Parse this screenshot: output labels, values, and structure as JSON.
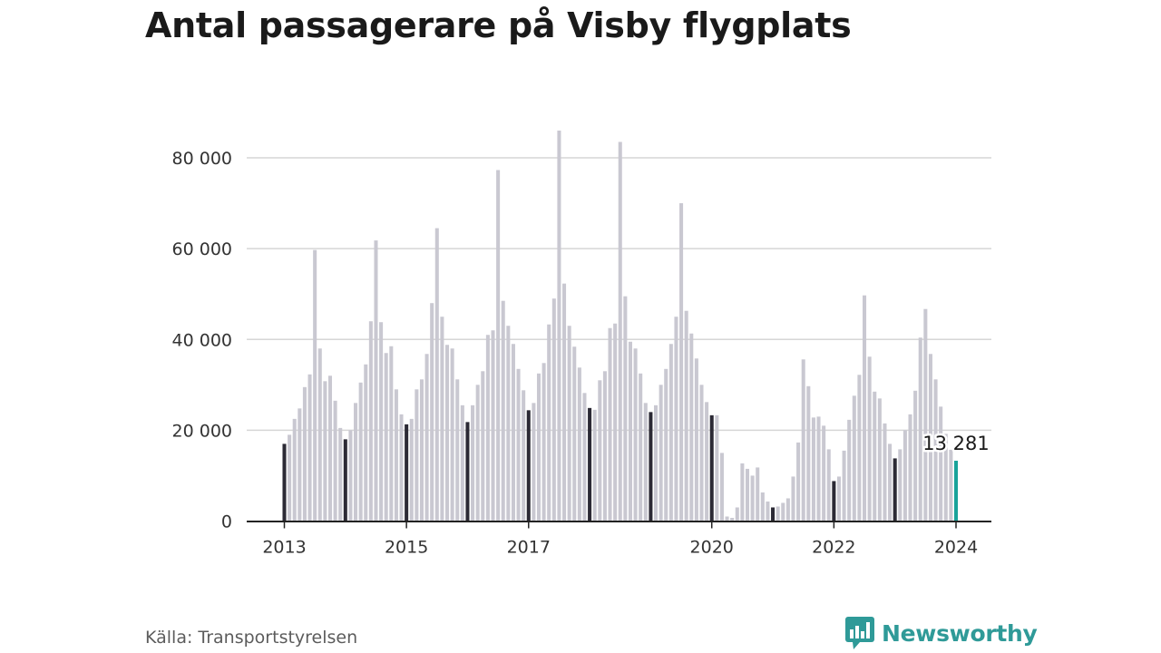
{
  "title": "Antal passagerare på Visby flygplats",
  "source": "Källa: Transportstyrelsen",
  "brand": "Newsworthy",
  "colors": {
    "bar": "#c9c8d1",
    "january": "#2c2a35",
    "latest": "#19a39a",
    "grid": "#d6d6d6",
    "axis": "#222222",
    "brand": "#2f9a98"
  },
  "chart_data": {
    "type": "bar",
    "frequency": "monthly",
    "start": "2013-01",
    "end": "2024-01",
    "ylim": [
      0,
      88000
    ],
    "yticks": [
      0,
      20000,
      40000,
      60000,
      80000
    ],
    "ytick_labels": [
      "0",
      "20 000",
      "40 000",
      "60 000",
      "80 000"
    ],
    "xtick_labels": [
      "2013",
      "2015",
      "2017",
      "2020",
      "2022",
      "2024"
    ],
    "xtick_months": [
      "2013-01",
      "2015-01",
      "2017-01",
      "2020-01",
      "2022-01",
      "2024-01"
    ],
    "highlight": "January bars dark, latest month teal",
    "values": [
      17000,
      19000,
      22500,
      24800,
      29500,
      32300,
      59700,
      38000,
      30800,
      32000,
      26500,
      20500,
      18000,
      20000,
      26000,
      30500,
      34500,
      44000,
      61800,
      43800,
      37000,
      38500,
      29000,
      23500,
      21300,
      22500,
      29000,
      31200,
      36800,
      48000,
      64500,
      45000,
      38800,
      38000,
      31200,
      25500,
      21800,
      25500,
      30000,
      33000,
      41000,
      42000,
      77300,
      48500,
      43000,
      39000,
      33500,
      28800,
      24400,
      26000,
      32500,
      34800,
      43300,
      49000,
      86000,
      52300,
      43000,
      38400,
      33800,
      28200,
      24900,
      24500,
      31000,
      33000,
      42500,
      43500,
      83500,
      49500,
      39500,
      38000,
      32500,
      26000,
      24000,
      25500,
      30000,
      33500,
      39000,
      45000,
      70000,
      46300,
      41300,
      35800,
      30000,
      26200,
      23300,
      23300,
      15000,
      1000,
      700,
      3000,
      12700,
      11500,
      10000,
      11800,
      6300,
      4300,
      3000,
      3200,
      4000,
      5000,
      9800,
      17300,
      35600,
      29700,
      22800,
      23000,
      21000,
      15800,
      8800,
      9800,
      15500,
      22300,
      27600,
      32200,
      49700,
      36200,
      28500,
      27000,
      21500,
      17000,
      13800,
      15800,
      20000,
      23500,
      28700,
      40400,
      46700,
      36800,
      31200,
      25200,
      19200,
      15700,
      13281
    ],
    "latest_label": "13 281"
  }
}
